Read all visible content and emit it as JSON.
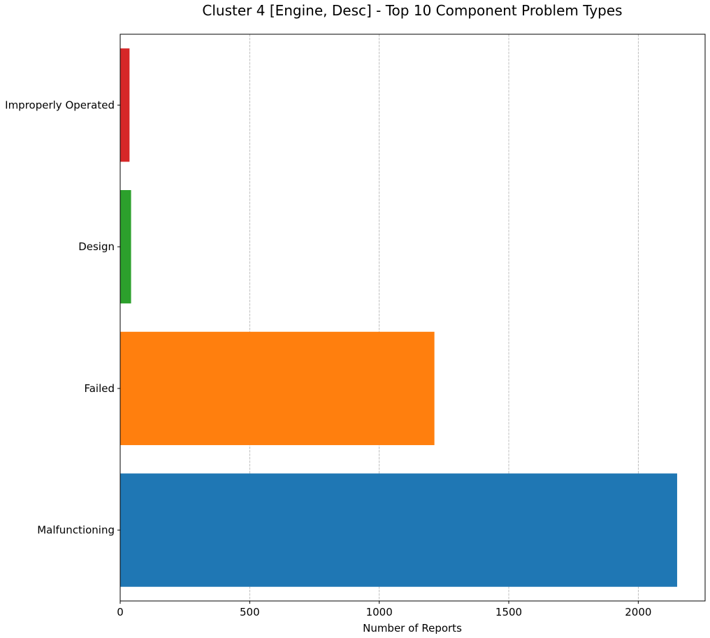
{
  "chart_data": {
    "type": "bar",
    "orientation": "horizontal",
    "title": "Cluster 4 [Engine, Desc] - Top 10 Component Problem Types",
    "xlabel": "Number of Reports",
    "ylabel": "",
    "categories": [
      "Malfunctioning",
      "Failed",
      "Design",
      "Improperly Operated"
    ],
    "values": [
      2150,
      1213,
      42,
      36
    ],
    "colors": [
      "#1f77b4",
      "#ff7f0e",
      "#2ca02c",
      "#d62728"
    ],
    "xlim": [
      0,
      2258
    ],
    "xticks": [
      0,
      500,
      1000,
      1500,
      2000
    ],
    "grid": "x-dashed",
    "legend": "none"
  }
}
